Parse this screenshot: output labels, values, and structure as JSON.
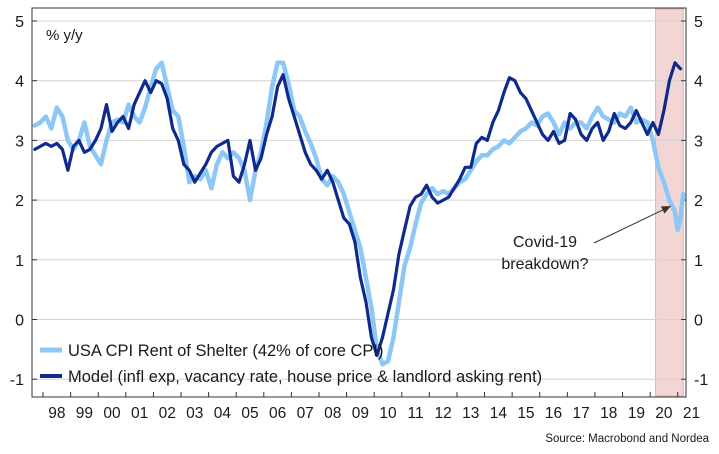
{
  "chart_data": {
    "type": "line",
    "unit_label": "% y/y",
    "ylim": [
      -1,
      5
    ],
    "yticks": [
      5,
      4,
      3,
      2,
      1,
      0,
      -1
    ],
    "xlim": [
      1997.6,
      2021.3
    ],
    "xtick_labels": [
      "98",
      "99",
      "00",
      "01",
      "02",
      "03",
      "04",
      "05",
      "06",
      "07",
      "08",
      "09",
      "10",
      "11",
      "12",
      "13",
      "14",
      "15",
      "16",
      "17",
      "18",
      "19",
      "20",
      "21"
    ],
    "shaded_region": {
      "x": [
        2020.2,
        2021.2
      ],
      "color": "#f2d6d6",
      "edge_color": "#e9a9a9"
    },
    "annotation": {
      "lines": [
        "Covid-19",
        "breakdown?"
      ],
      "arrow_to": {
        "x": 2020.75,
        "y": 1.9
      }
    },
    "source": "Source: Macrobond and Nordea",
    "series": [
      {
        "name": "USA CPI Rent of Shelter (42% of core CPI)",
        "color": "#8cc7f5",
        "width": 4.5,
        "points": [
          [
            1997.7,
            3.25
          ],
          [
            1997.9,
            3.3
          ],
          [
            1998.1,
            3.4
          ],
          [
            1998.3,
            3.2
          ],
          [
            1998.5,
            3.55
          ],
          [
            1998.7,
            3.4
          ],
          [
            1998.9,
            3.0
          ],
          [
            1999.1,
            2.85
          ],
          [
            1999.3,
            3.0
          ],
          [
            1999.5,
            3.3
          ],
          [
            1999.7,
            2.9
          ],
          [
            1999.9,
            2.75
          ],
          [
            2000.1,
            2.6
          ],
          [
            2000.3,
            3.0
          ],
          [
            2000.5,
            3.3
          ],
          [
            2000.7,
            3.35
          ],
          [
            2000.9,
            3.3
          ],
          [
            2001.1,
            3.6
          ],
          [
            2001.3,
            3.4
          ],
          [
            2001.5,
            3.3
          ],
          [
            2001.7,
            3.55
          ],
          [
            2001.9,
            3.9
          ],
          [
            2002.1,
            4.2
          ],
          [
            2002.3,
            4.3
          ],
          [
            2002.5,
            3.9
          ],
          [
            2002.7,
            3.5
          ],
          [
            2002.9,
            3.4
          ],
          [
            2003.1,
            2.9
          ],
          [
            2003.3,
            2.3
          ],
          [
            2003.5,
            2.4
          ],
          [
            2003.7,
            2.35
          ],
          [
            2003.9,
            2.5
          ],
          [
            2004.1,
            2.2
          ],
          [
            2004.3,
            2.6
          ],
          [
            2004.5,
            2.8
          ],
          [
            2004.7,
            2.7
          ],
          [
            2004.9,
            2.8
          ],
          [
            2005.1,
            2.7
          ],
          [
            2005.3,
            2.5
          ],
          [
            2005.5,
            2.0
          ],
          [
            2005.7,
            2.5
          ],
          [
            2005.9,
            2.8
          ],
          [
            2006.1,
            3.3
          ],
          [
            2006.3,
            3.9
          ],
          [
            2006.5,
            4.3
          ],
          [
            2006.7,
            4.3
          ],
          [
            2006.9,
            3.95
          ],
          [
            2007.1,
            3.5
          ],
          [
            2007.3,
            3.4
          ],
          [
            2007.5,
            3.15
          ],
          [
            2007.7,
            2.95
          ],
          [
            2007.9,
            2.7
          ],
          [
            2008.1,
            2.35
          ],
          [
            2008.3,
            2.25
          ],
          [
            2008.5,
            2.4
          ],
          [
            2008.7,
            2.3
          ],
          [
            2008.9,
            2.1
          ],
          [
            2009.1,
            1.8
          ],
          [
            2009.3,
            1.5
          ],
          [
            2009.5,
            1.2
          ],
          [
            2009.7,
            0.7
          ],
          [
            2009.9,
            0.2
          ],
          [
            2010.1,
            -0.5
          ],
          [
            2010.3,
            -0.75
          ],
          [
            2010.5,
            -0.7
          ],
          [
            2010.7,
            -0.3
          ],
          [
            2010.9,
            0.3
          ],
          [
            2011.1,
            0.9
          ],
          [
            2011.3,
            1.2
          ],
          [
            2011.5,
            1.6
          ],
          [
            2011.7,
            1.95
          ],
          [
            2011.9,
            2.1
          ],
          [
            2012.1,
            2.2
          ],
          [
            2012.3,
            2.1
          ],
          [
            2012.5,
            2.15
          ],
          [
            2012.7,
            2.1
          ],
          [
            2012.9,
            2.2
          ],
          [
            2013.1,
            2.3
          ],
          [
            2013.3,
            2.35
          ],
          [
            2013.5,
            2.5
          ],
          [
            2013.7,
            2.65
          ],
          [
            2013.9,
            2.75
          ],
          [
            2014.1,
            2.75
          ],
          [
            2014.3,
            2.85
          ],
          [
            2014.5,
            2.9
          ],
          [
            2014.7,
            3.0
          ],
          [
            2014.9,
            2.95
          ],
          [
            2015.1,
            3.05
          ],
          [
            2015.3,
            3.15
          ],
          [
            2015.5,
            3.2
          ],
          [
            2015.7,
            3.3
          ],
          [
            2015.9,
            3.25
          ],
          [
            2016.1,
            3.4
          ],
          [
            2016.3,
            3.45
          ],
          [
            2016.5,
            3.3
          ],
          [
            2016.7,
            3.1
          ],
          [
            2016.9,
            3.3
          ],
          [
            2017.1,
            3.2
          ],
          [
            2017.3,
            3.3
          ],
          [
            2017.5,
            3.3
          ],
          [
            2017.7,
            3.2
          ],
          [
            2017.9,
            3.4
          ],
          [
            2018.1,
            3.55
          ],
          [
            2018.3,
            3.4
          ],
          [
            2018.5,
            3.35
          ],
          [
            2018.7,
            3.3
          ],
          [
            2018.9,
            3.45
          ],
          [
            2019.1,
            3.4
          ],
          [
            2019.3,
            3.55
          ],
          [
            2019.5,
            3.3
          ],
          [
            2019.7,
            3.35
          ],
          [
            2019.9,
            3.3
          ],
          [
            2020.1,
            3.0
          ],
          [
            2020.3,
            2.55
          ],
          [
            2020.5,
            2.3
          ],
          [
            2020.7,
            2.0
          ],
          [
            2020.9,
            1.8
          ],
          [
            2021.0,
            1.5
          ],
          [
            2021.1,
            1.7
          ],
          [
            2021.2,
            2.1
          ]
        ]
      },
      {
        "name": "Model (infl exp, vacancy rate, house price & landlord asking rent)",
        "color": "#0e2a8c",
        "width": 3.2,
        "points": [
          [
            1997.7,
            2.85
          ],
          [
            1997.9,
            2.9
          ],
          [
            1998.1,
            2.95
          ],
          [
            1998.3,
            2.9
          ],
          [
            1998.5,
            2.95
          ],
          [
            1998.7,
            2.85
          ],
          [
            1998.9,
            2.5
          ],
          [
            1999.1,
            2.9
          ],
          [
            1999.3,
            3.0
          ],
          [
            1999.5,
            2.8
          ],
          [
            1999.7,
            2.85
          ],
          [
            1999.9,
            3.0
          ],
          [
            2000.1,
            3.2
          ],
          [
            2000.3,
            3.6
          ],
          [
            2000.5,
            3.15
          ],
          [
            2000.7,
            3.3
          ],
          [
            2000.9,
            3.4
          ],
          [
            2001.1,
            3.2
          ],
          [
            2001.3,
            3.6
          ],
          [
            2001.5,
            3.8
          ],
          [
            2001.7,
            4.0
          ],
          [
            2001.9,
            3.8
          ],
          [
            2002.1,
            4.0
          ],
          [
            2002.3,
            3.95
          ],
          [
            2002.5,
            3.7
          ],
          [
            2002.7,
            3.2
          ],
          [
            2002.9,
            3.0
          ],
          [
            2003.1,
            2.6
          ],
          [
            2003.3,
            2.5
          ],
          [
            2003.5,
            2.3
          ],
          [
            2003.7,
            2.45
          ],
          [
            2003.9,
            2.6
          ],
          [
            2004.1,
            2.8
          ],
          [
            2004.3,
            2.9
          ],
          [
            2004.5,
            2.95
          ],
          [
            2004.7,
            3.0
          ],
          [
            2004.9,
            2.4
          ],
          [
            2005.1,
            2.3
          ],
          [
            2005.3,
            2.6
          ],
          [
            2005.5,
            3.0
          ],
          [
            2005.7,
            2.5
          ],
          [
            2005.9,
            2.7
          ],
          [
            2006.1,
            3.1
          ],
          [
            2006.3,
            3.4
          ],
          [
            2006.5,
            3.9
          ],
          [
            2006.7,
            4.1
          ],
          [
            2006.9,
            3.7
          ],
          [
            2007.1,
            3.4
          ],
          [
            2007.3,
            3.1
          ],
          [
            2007.5,
            2.8
          ],
          [
            2007.7,
            2.6
          ],
          [
            2007.9,
            2.5
          ],
          [
            2008.1,
            2.35
          ],
          [
            2008.3,
            2.5
          ],
          [
            2008.5,
            2.3
          ],
          [
            2008.7,
            2.0
          ],
          [
            2008.9,
            1.7
          ],
          [
            2009.1,
            1.6
          ],
          [
            2009.3,
            1.3
          ],
          [
            2009.5,
            0.7
          ],
          [
            2009.7,
            0.3
          ],
          [
            2009.9,
            -0.3
          ],
          [
            2010.1,
            -0.6
          ],
          [
            2010.3,
            -0.3
          ],
          [
            2010.5,
            0.1
          ],
          [
            2010.7,
            0.5
          ],
          [
            2010.9,
            1.1
          ],
          [
            2011.1,
            1.5
          ],
          [
            2011.3,
            1.9
          ],
          [
            2011.5,
            2.05
          ],
          [
            2011.7,
            2.1
          ],
          [
            2011.9,
            2.25
          ],
          [
            2012.1,
            2.05
          ],
          [
            2012.3,
            1.95
          ],
          [
            2012.5,
            2.0
          ],
          [
            2012.7,
            2.05
          ],
          [
            2012.9,
            2.2
          ],
          [
            2013.1,
            2.35
          ],
          [
            2013.3,
            2.55
          ],
          [
            2013.5,
            2.55
          ],
          [
            2013.7,
            2.95
          ],
          [
            2013.9,
            3.05
          ],
          [
            2014.1,
            3.0
          ],
          [
            2014.3,
            3.3
          ],
          [
            2014.5,
            3.5
          ],
          [
            2014.7,
            3.8
          ],
          [
            2014.9,
            4.05
          ],
          [
            2015.1,
            4.0
          ],
          [
            2015.3,
            3.8
          ],
          [
            2015.5,
            3.7
          ],
          [
            2015.7,
            3.5
          ],
          [
            2015.9,
            3.3
          ],
          [
            2016.1,
            3.1
          ],
          [
            2016.3,
            3.0
          ],
          [
            2016.5,
            3.15
          ],
          [
            2016.7,
            2.95
          ],
          [
            2016.9,
            3.0
          ],
          [
            2017.1,
            3.45
          ],
          [
            2017.3,
            3.35
          ],
          [
            2017.5,
            3.1
          ],
          [
            2017.7,
            3.0
          ],
          [
            2017.9,
            3.2
          ],
          [
            2018.1,
            3.3
          ],
          [
            2018.3,
            3.0
          ],
          [
            2018.5,
            3.15
          ],
          [
            2018.7,
            3.45
          ],
          [
            2018.9,
            3.25
          ],
          [
            2019.1,
            3.2
          ],
          [
            2019.3,
            3.3
          ],
          [
            2019.5,
            3.5
          ],
          [
            2019.7,
            3.3
          ],
          [
            2019.9,
            3.1
          ],
          [
            2020.1,
            3.3
          ],
          [
            2020.3,
            3.1
          ],
          [
            2020.5,
            3.5
          ],
          [
            2020.7,
            4.0
          ],
          [
            2020.9,
            4.3
          ],
          [
            2021.0,
            4.25
          ],
          [
            2021.1,
            4.2
          ]
        ]
      }
    ]
  }
}
